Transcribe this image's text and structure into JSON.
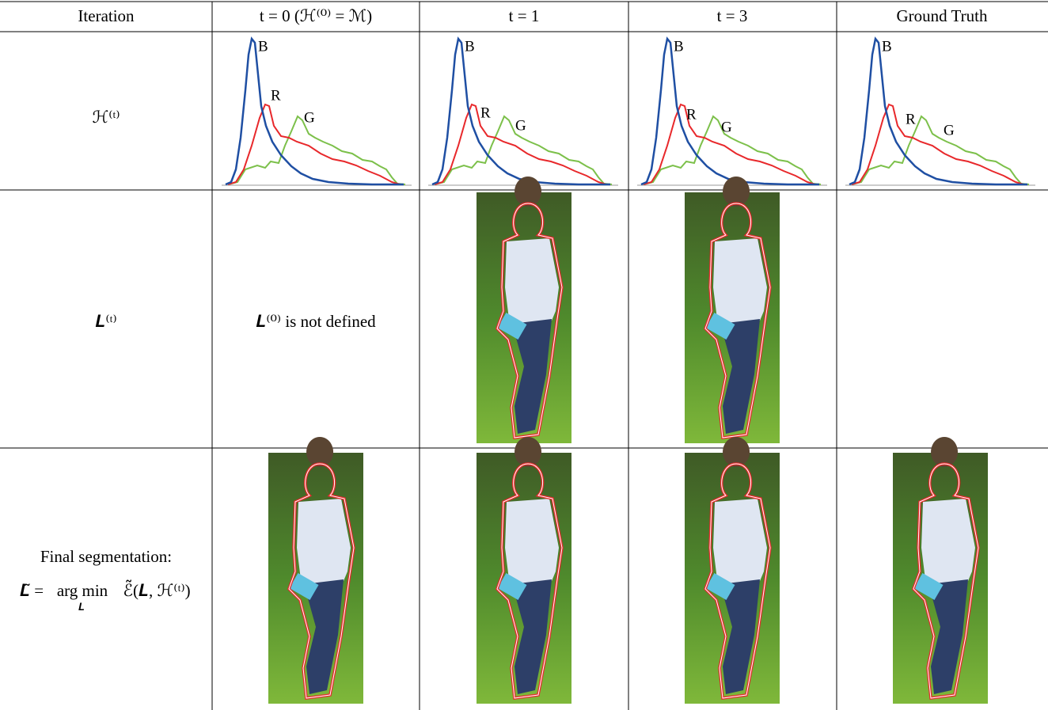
{
  "header": {
    "cells": [
      "Iteration",
      "t = 0 (ℋ⁽⁰⁾ = ℳ)",
      "t = 1",
      "t = 3",
      "Ground Truth"
    ]
  },
  "rows": [
    {
      "label": "ℋ⁽ᵗ⁾",
      "histograms": [
        {
          "labels": [
            "B",
            "R",
            "G"
          ]
        },
        {
          "labels": [
            "B",
            "R",
            "G"
          ]
        },
        {
          "labels": [
            "B",
            "R",
            "G"
          ]
        },
        {
          "labels": [
            "B",
            "R",
            "G"
          ]
        }
      ]
    },
    {
      "label": "𝑳⁽ᵗ⁾",
      "note": "𝑳⁽⁰⁾ is not defined"
    },
    {
      "label": {
        "line1": "Final segmentation:",
        "lhs": "𝑳̃ =",
        "op": "arg min",
        "sub": "𝑳",
        "rhs": "ℰ̃(𝑳, ℋ⁽ᵗ⁾)"
      }
    }
  ]
}
